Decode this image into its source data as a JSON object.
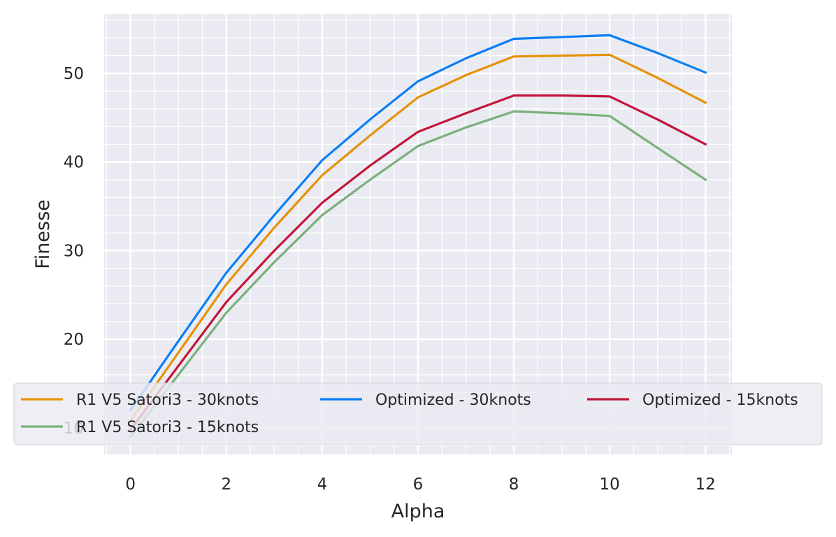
{
  "chart_data": {
    "type": "line",
    "title": "",
    "xlabel": "Alpha",
    "ylabel": "Finesse",
    "x": [
      0,
      1,
      2,
      3,
      4,
      5,
      6,
      7,
      8,
      9,
      10,
      11,
      12
    ],
    "xticks": [
      0,
      2,
      4,
      6,
      8,
      10,
      12
    ],
    "xtick_labels": [
      "0",
      "2",
      "4",
      "6",
      "8",
      "10",
      "12"
    ],
    "yticks": [
      10,
      20,
      30,
      40,
      50
    ],
    "ytick_labels": [
      "10",
      "20",
      "30",
      "40",
      "50"
    ],
    "xlim": [
      -0.55,
      12.55
    ],
    "ylim": [
      7.0,
      56.7
    ],
    "grid": true,
    "minor_grid": true,
    "legend_position": "lower-center",
    "legend_columns": 3,
    "background_color": "#eaeaf2",
    "grid_color": "#ffffff",
    "series": [
      {
        "name": "R1 V5 Satori3 - 30knots",
        "color": "#e69206",
        "values": [
          10.8,
          18.5,
          26.2,
          32.6,
          38.5,
          43.0,
          47.3,
          49.8,
          51.9,
          52.0,
          52.1,
          49.5,
          46.7
        ]
      },
      {
        "name": "Optimized - 30knots",
        "color": "#0a7ff5",
        "values": [
          12.0,
          19.8,
          27.5,
          34.0,
          40.2,
          44.8,
          49.1,
          51.7,
          53.9,
          54.1,
          54.3,
          52.3,
          50.1
        ]
      },
      {
        "name": "Optimized - 15knots",
        "color": "#c2153a",
        "values": [
          9.8,
          17.0,
          24.2,
          30.0,
          35.4,
          39.6,
          43.4,
          45.5,
          47.5,
          47.5,
          47.4,
          44.8,
          42.0
        ]
      },
      {
        "name": "R1 V5 Satori3 - 15knots",
        "color": "#7ab07a",
        "values": [
          9.0,
          16.0,
          23.0,
          28.7,
          34.0,
          38.0,
          41.8,
          43.9,
          45.7,
          45.5,
          45.2,
          41.6,
          38.0
        ]
      }
    ]
  }
}
